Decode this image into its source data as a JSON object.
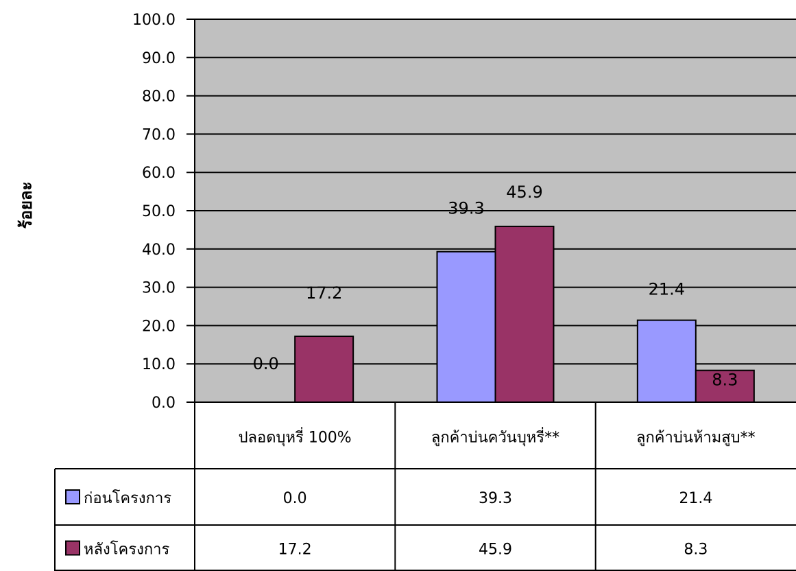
{
  "chart_data": {
    "type": "bar",
    "ylabel": "ร้อยละ",
    "ylim": [
      0,
      100
    ],
    "yticks": [
      "0.0",
      "10.0",
      "20.0",
      "30.0",
      "40.0",
      "50.0",
      "60.0",
      "70.0",
      "80.0",
      "90.0",
      "100.0"
    ],
    "grid": true,
    "categories": [
      "ปลอดบุหรี่ 100%",
      "ลูกค้าบ่นควันบุหรี่**",
      "ลูกค้าบ่นห้ามสูบ**"
    ],
    "series": [
      {
        "name": "ก่อนโครงการ",
        "color": "#9999FF",
        "values": [
          0.0,
          39.3,
          21.4
        ],
        "labels": [
          "0.0",
          "39.3",
          "21.4"
        ]
      },
      {
        "name": "หลังโครงการ",
        "color": "#993366",
        "values": [
          17.2,
          45.9,
          8.3
        ],
        "labels": [
          "17.2",
          "45.9",
          "8.3"
        ]
      }
    ],
    "plot_background": "#C0C0C0",
    "legend": "data-table"
  }
}
